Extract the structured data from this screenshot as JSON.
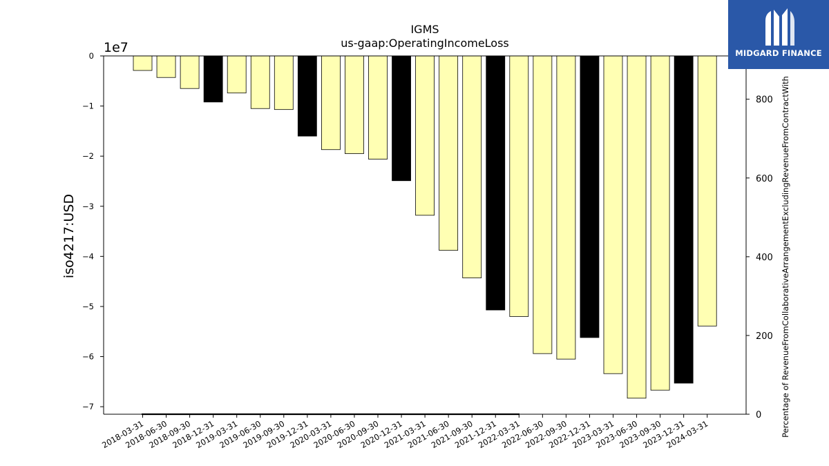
{
  "chart_data": {
    "type": "bar",
    "title": "IGMS",
    "subtitle": "us-gaap:OperatingIncomeLoss",
    "ylabel": "iso4217:USD",
    "y_offset_label": "1e7",
    "y2label": "Percentage of RevenueFromCollaborativeArrangementExcludingRevenueFromContractWith",
    "ylim": [
      -7.15,
      0
    ],
    "y_ticks": [
      "0",
      "−1",
      "−2",
      "−3",
      "−4",
      "−5",
      "−6",
      "−7"
    ],
    "y_tick_values": [
      0,
      -1,
      -2,
      -3,
      -4,
      -5,
      -6,
      -7
    ],
    "y2lim": [
      0,
      910
    ],
    "y2_ticks": [
      "0",
      "200",
      "400",
      "600",
      "800"
    ],
    "y2_tick_values": [
      0,
      200,
      400,
      600,
      800
    ],
    "categories": [
      "2018-03-31",
      "2018-06-30",
      "2018-09-30",
      "2018-12-31",
      "2019-03-31",
      "2019-06-30",
      "2019-09-30",
      "2019-12-31",
      "2020-03-31",
      "2020-06-30",
      "2020-09-30",
      "2020-12-31",
      "2021-03-31",
      "2021-06-30",
      "2021-09-30",
      "2021-12-31",
      "2022-03-31",
      "2022-06-30",
      "2022-09-30",
      "2022-12-31",
      "2023-03-31",
      "2023-06-30",
      "2023-09-30",
      "2023-12-31",
      "2024-03-31"
    ],
    "values": [
      -0.29,
      -0.43,
      -0.65,
      -0.92,
      -0.74,
      -1.05,
      -1.07,
      -1.6,
      -1.87,
      -1.95,
      -2.06,
      -2.49,
      -3.18,
      -3.88,
      -4.43,
      -5.07,
      -5.2,
      -5.94,
      -6.05,
      -5.62,
      -6.34,
      -6.83,
      -6.67,
      -6.53,
      -5.39
    ],
    "year_end": [
      false,
      false,
      false,
      true,
      false,
      false,
      false,
      true,
      false,
      false,
      false,
      true,
      false,
      false,
      false,
      true,
      false,
      false,
      false,
      true,
      false,
      false,
      false,
      true,
      false
    ],
    "colors": {
      "quarter": "#ffffb3",
      "year_end": "#000000",
      "edge": "#000000"
    },
    "grid": false
  },
  "logo": {
    "text": "MIDGARD FINANCE",
    "bg": "#2a58a8"
  }
}
